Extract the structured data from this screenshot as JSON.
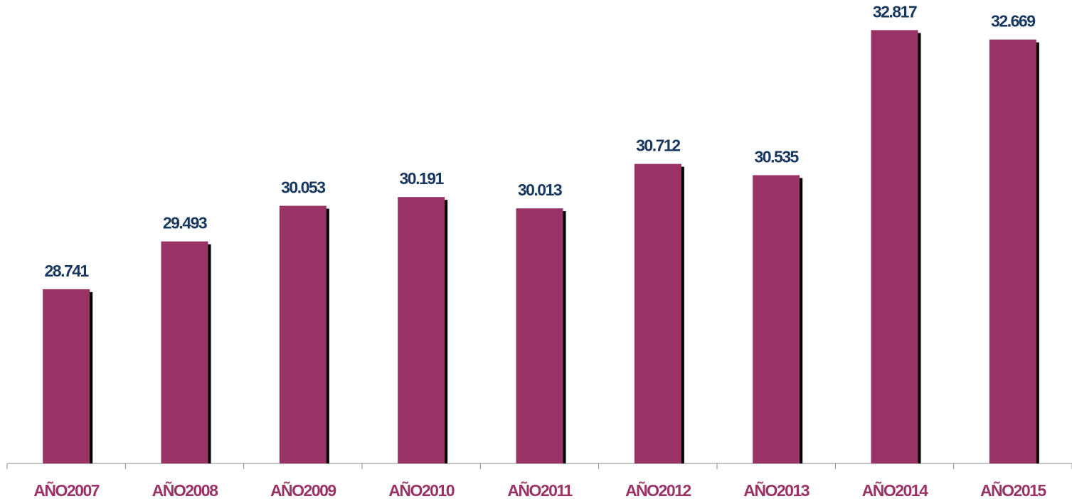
{
  "chart_data": {
    "type": "bar",
    "categories": [
      "AÑO2007",
      "AÑO2008",
      "AÑO2009",
      "AÑO2010",
      "AÑO2011",
      "AÑO2012",
      "AÑO2013",
      "AÑO2014",
      "AÑO2015"
    ],
    "values": [
      28741,
      29493,
      30053,
      30191,
      30013,
      30712,
      30535,
      32817,
      32669
    ],
    "value_labels": [
      "28.741",
      "29.493",
      "30.053",
      "30.191",
      "30.013",
      "30.712",
      "30.535",
      "32.817",
      "32.669"
    ],
    "color": "#993366",
    "ylim": [
      26000,
      33000
    ]
  }
}
